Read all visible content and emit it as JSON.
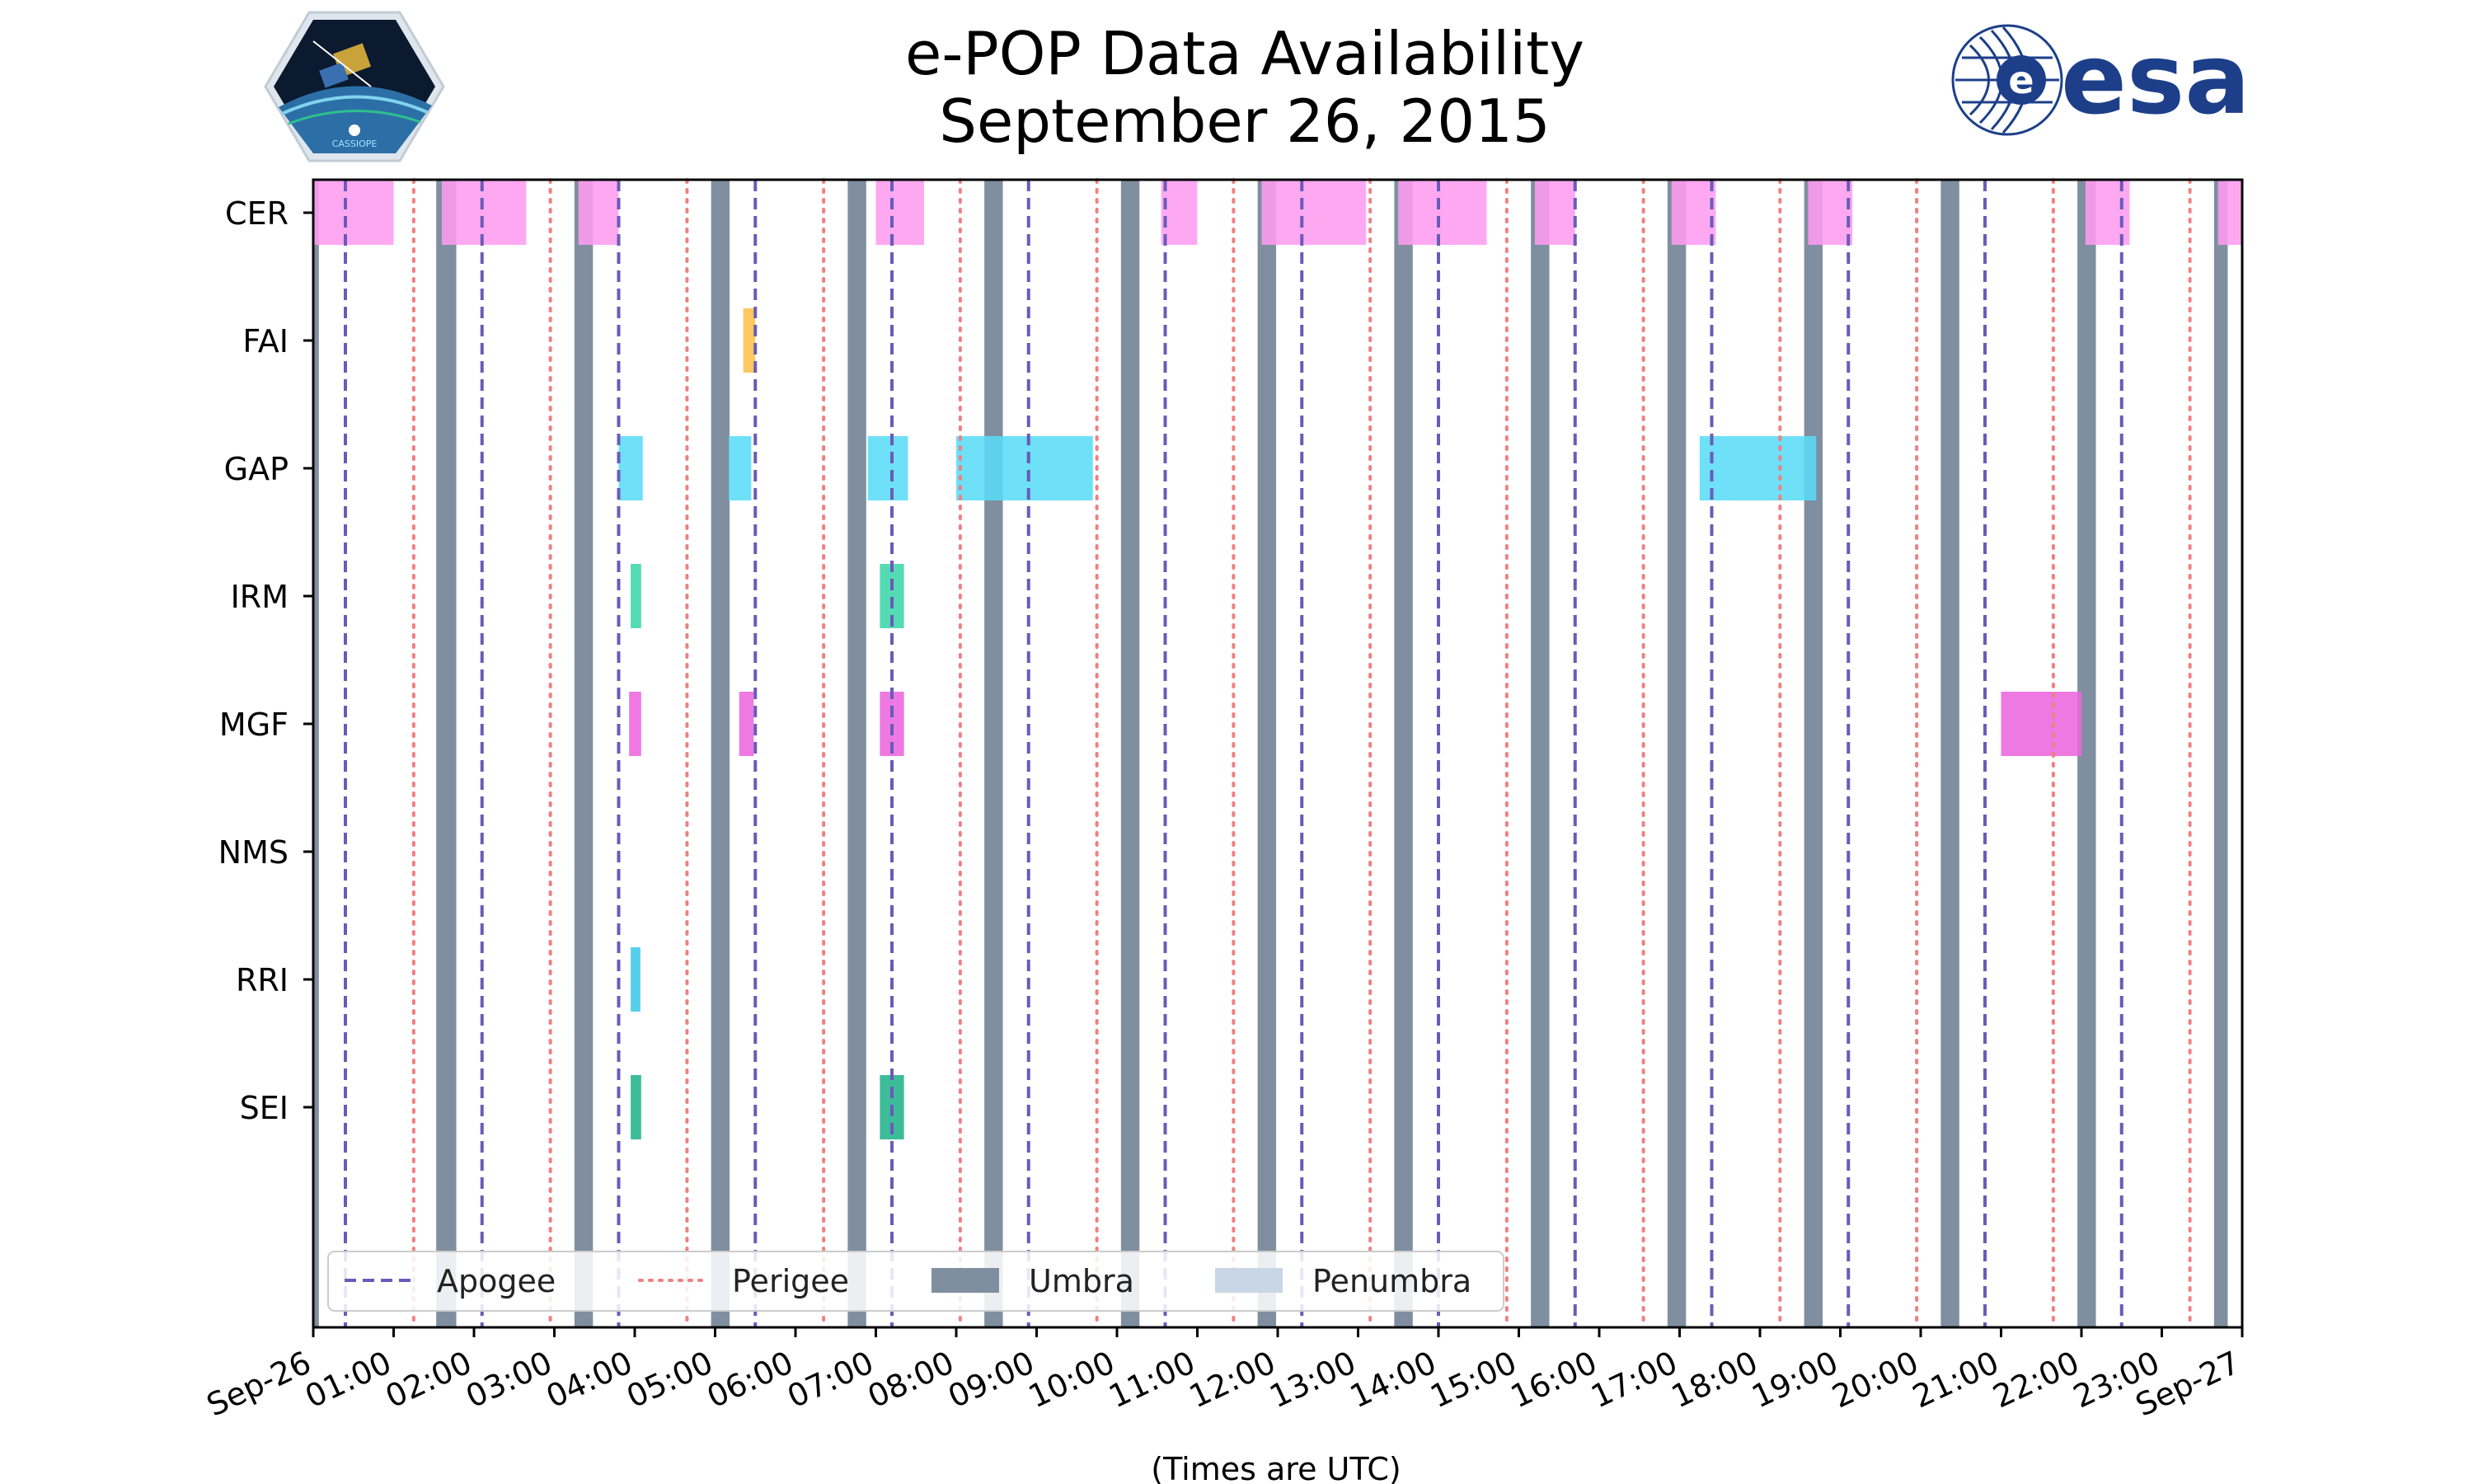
{
  "chart_data": {
    "type": "timeline",
    "title": "e-POP Data Availability",
    "subtitle": "September 26, 2015",
    "xlabel": "(Times are UTC)",
    "x_range_hours": [
      0,
      24
    ],
    "x_ticks": [
      "Sep-26",
      "01:00",
      "02:00",
      "03:00",
      "04:00",
      "05:00",
      "06:00",
      "07:00",
      "08:00",
      "09:00",
      "10:00",
      "11:00",
      "12:00",
      "13:00",
      "14:00",
      "15:00",
      "16:00",
      "17:00",
      "18:00",
      "19:00",
      "20:00",
      "21:00",
      "22:00",
      "23:00",
      "Sep-27"
    ],
    "instruments": [
      "CER",
      "FAI",
      "GAP",
      "IRM",
      "MGF",
      "NMS",
      "RRI",
      "SEI"
    ],
    "colors": {
      "CER": "#ff9cf0",
      "FAI": "#ffc04a",
      "GAP": "#5adcf6",
      "IRM": "#3dd6a8",
      "MGF": "#ec67de",
      "NMS": "#999999",
      "RRI": "#3ec8e8",
      "SEI": "#22b38c",
      "apogee": "#6a5bb8",
      "perigee": "#f08080",
      "umbra": "#7f8fa0",
      "penumbra": "#c8d6e6"
    },
    "apogee_hours": [
      0.4,
      2.1,
      3.8,
      5.5,
      7.2,
      8.9,
      10.6,
      12.3,
      14.0,
      15.7,
      17.4,
      19.1,
      20.8,
      22.5
    ],
    "perigee_hours": [
      1.25,
      2.95,
      4.65,
      6.35,
      8.05,
      9.75,
      11.45,
      13.15,
      14.85,
      16.55,
      18.25,
      19.95,
      21.65,
      23.35
    ],
    "umbra_intervals": [
      [
        0.0,
        0.07
      ],
      [
        1.53,
        1.78
      ],
      [
        3.25,
        3.48
      ],
      [
        4.95,
        5.18
      ],
      [
        6.65,
        6.88
      ],
      [
        8.35,
        8.58
      ],
      [
        10.05,
        10.28
      ],
      [
        11.75,
        11.98
      ],
      [
        13.45,
        13.68
      ],
      [
        15.15,
        15.38
      ],
      [
        16.85,
        17.08
      ],
      [
        18.55,
        18.78
      ],
      [
        20.25,
        20.48
      ],
      [
        21.95,
        22.18
      ],
      [
        23.65,
        23.82
      ]
    ],
    "penumbra_intervals": [],
    "series": [
      {
        "name": "CER",
        "intervals": [
          [
            0.0,
            1.0
          ],
          [
            1.6,
            2.65
          ],
          [
            3.3,
            3.8
          ],
          [
            7.0,
            7.6
          ],
          [
            10.55,
            11.0
          ],
          [
            11.8,
            13.1
          ],
          [
            13.5,
            14.6
          ],
          [
            15.2,
            15.7
          ],
          [
            16.9,
            17.45
          ],
          [
            18.6,
            19.15
          ],
          [
            22.05,
            22.6
          ],
          [
            23.7,
            24.0
          ]
        ]
      },
      {
        "name": "FAI",
        "intervals": [
          [
            5.35,
            5.5
          ]
        ]
      },
      {
        "name": "GAP",
        "intervals": [
          [
            3.8,
            4.1
          ],
          [
            5.17,
            5.45
          ],
          [
            6.9,
            7.4
          ],
          [
            8.0,
            9.7
          ],
          [
            17.25,
            18.7
          ]
        ]
      },
      {
        "name": "IRM",
        "intervals": [
          [
            3.95,
            4.08
          ],
          [
            7.05,
            7.35
          ]
        ]
      },
      {
        "name": "MGF",
        "intervals": [
          [
            3.93,
            4.08
          ],
          [
            5.3,
            5.48
          ],
          [
            7.05,
            7.35
          ],
          [
            21.0,
            22.0
          ]
        ]
      },
      {
        "name": "NMS",
        "intervals": []
      },
      {
        "name": "RRI",
        "intervals": [
          [
            3.95,
            4.07
          ]
        ]
      },
      {
        "name": "SEI",
        "intervals": [
          [
            3.95,
            4.08
          ],
          [
            7.05,
            7.35
          ]
        ]
      }
    ],
    "legend": {
      "location": "lower-left",
      "entries": [
        "Apogee",
        "Perigee",
        "Umbra",
        "Penumbra"
      ]
    }
  },
  "logos": {
    "left": {
      "text": "CASSIOPE"
    },
    "right": {
      "text": "esa"
    }
  }
}
